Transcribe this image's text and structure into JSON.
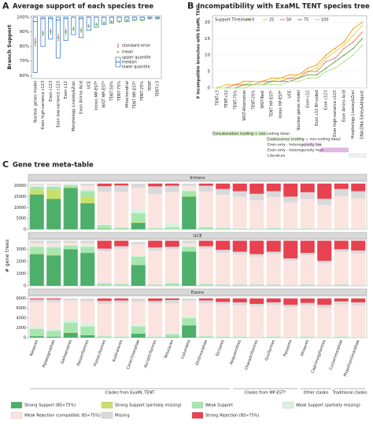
{
  "chart_data": [
    {
      "type": "box",
      "label": "A",
      "title": "Average support of each species tree",
      "y_label": "Branch Support",
      "categories": [
        "Nuclear genes model",
        "Exon high-variance c123",
        "Exon c123",
        "Exon low-variance c123",
        "Exon c12",
        "Morphology Livezey&Zusi",
        "Exon Amino Acid",
        "UCE",
        "Intron MP-EST*",
        "WGT MP-EST*",
        "TENT-50%",
        "TENT-75%",
        "Mitochondrial",
        "TENT MP-EST*",
        "TENT-25%",
        "TENT",
        "TENT-c3"
      ],
      "ylim": [
        58,
        101
      ],
      "yticks": [
        {
          "value": 60,
          "label": "60%"
        },
        {
          "value": 70,
          "label": "70%"
        },
        {
          "value": 80,
          "label": "80%"
        },
        {
          "value": 90,
          "label": "90%"
        },
        {
          "value": 100,
          "label": "100%"
        }
      ],
      "series": [
        {
          "name": "upper quantile",
          "color": "#3a7fd0",
          "values": [
            100,
            100,
            100,
            100,
            100,
            100,
            100,
            100,
            100,
            100,
            100,
            100,
            100,
            100,
            100,
            100,
            100
          ]
        },
        {
          "name": "median",
          "color": "#3a7fd0",
          "values": [
            97,
            99,
            99,
            98,
            99,
            100,
            99,
            100,
            100,
            100,
            100,
            100,
            100,
            100,
            100,
            100,
            100
          ]
        },
        {
          "name": "lower quantile",
          "color": "#3a7fd0",
          "values": [
            62,
            80,
            85,
            72,
            84,
            88,
            86,
            91,
            93,
            95,
            96,
            97,
            97,
            98,
            98,
            99,
            99
          ]
        },
        {
          "name": "mean",
          "color": "#7cc242",
          "values": [
            83,
            89,
            90,
            86,
            90,
            92,
            91,
            94,
            95,
            96,
            97,
            97,
            98,
            98,
            98,
            99,
            99
          ]
        },
        {
          "name": "standard error",
          "color": "#e03030",
          "values": [
            3,
            2,
            2,
            2.5,
            2,
            1.5,
            1.8,
            1.2,
            1,
            1,
            0.8,
            0.7,
            0.6,
            0.5,
            0.5,
            0.4,
            0.4
          ]
        }
      ]
    },
    {
      "type": "line",
      "label": "B",
      "title": "Incompatibility with ExaML TENT species tree",
      "y_label": "# Incompatible branches with ExaML TENT",
      "legend_title": "Support Threshold",
      "groups": [
        {
          "label": "Concatenation (coding + non-coding data)",
          "color": "#d4f0c4",
          "categories": [
            "TENT-c3",
            "TENT-c12",
            "TENT-75%",
            "WGT-Alternative",
            "TENT-25%",
            "WGT-Best"
          ]
        },
        {
          "label": "Coalescence (coding + non-coding data)",
          "color": "#e8f6e0",
          "categories": [
            "TENT MP-EST*",
            "Intron MP-EST*",
            "UCE",
            "Nuclear genes model"
          ]
        },
        {
          "label": "Exon-only - heterogeneity low",
          "color": "#f3e4f4",
          "categories": [
            "Exon c12",
            "Exon c12 RY-coded"
          ]
        },
        {
          "label": "Exon-only - heterogeneity high",
          "color": "#e0b8e4",
          "categories": [
            "Exon c123",
            "Exon high-variance c123",
            "Exon Amino Acid"
          ]
        },
        {
          "label": "Literature",
          "color": "#eeeeee",
          "categories": [
            "Morphology Livezey&Zusi",
            "DNA-DNA Sibley&Ahlquist"
          ]
        }
      ],
      "ylim": [
        0,
        22
      ],
      "yticks": [
        0,
        5,
        10,
        15,
        20
      ],
      "series": [
        {
          "name": "0",
          "color": "#f0a020",
          "values": [
            0,
            1,
            1,
            2,
            2,
            2,
            3,
            3,
            4,
            4,
            6,
            7,
            10,
            12,
            14,
            18,
            20
          ]
        },
        {
          "name": "25",
          "color": "#e6d24a",
          "values": [
            0,
            1,
            1,
            1,
            2,
            2,
            2,
            3,
            3,
            4,
            5,
            6,
            9,
            11,
            13,
            16,
            19
          ]
        },
        {
          "name": "50",
          "color": "#f08080",
          "values": [
            0,
            0,
            1,
            1,
            1,
            2,
            2,
            2,
            3,
            3,
            5,
            5,
            8,
            9,
            12,
            14,
            17
          ]
        },
        {
          "name": "75",
          "color": "#6ab04c",
          "values": [
            0,
            0,
            0,
            1,
            1,
            1,
            2,
            2,
            2,
            3,
            4,
            4,
            6,
            8,
            10,
            12,
            15
          ]
        },
        {
          "name": "100",
          "color": "#b8e08a",
          "values": [
            0,
            0,
            0,
            0,
            1,
            1,
            1,
            1,
            2,
            2,
            3,
            3,
            5,
            6,
            8,
            10,
            13
          ]
        }
      ]
    },
    {
      "type": "stacked_bar",
      "label": "C",
      "title": "Gene tree meta-table",
      "y_label": "# gene trees",
      "groups": [
        {
          "label": "Clades from ExaML TENT",
          "categories": [
            "Neoaves",
            "Palaeognathae",
            "Galloanseres",
            "Passeriformes",
            "Psittaciformes",
            "Australaves",
            "Coraciimorphae",
            "Accipitriformes",
            "Telluraves",
            "Columbea",
            "Otidimorphae",
            "Strisores"
          ]
        },
        {
          "label": "Clades from MP-EST*",
          "categories": [
            "Aequornithes",
            "Charadriiformes",
            "Gruiformes",
            "Passerea"
          ]
        },
        {
          "label": "Other clades",
          "categories": [
            "Afroaves",
            "Caprimulgiformes"
          ]
        },
        {
          "label": "Traditional clades",
          "categories": [
            "Cursorimorphae",
            "Phaethontimorphae"
          ]
        }
      ],
      "series": [
        {
          "name": "Strong Support (BS>75%)",
          "color": "#4daf6a"
        },
        {
          "name": "Strong Support (partially missing)",
          "color": "#c8e06a"
        },
        {
          "name": "Weak Support",
          "color": "#a8e6b0"
        },
        {
          "name": "Weak Support (partially missing)",
          "color": "#d8f2e0"
        },
        {
          "name": "Weak Rejection (compatible, BS<75%)",
          "color": "#fbe3e0"
        },
        {
          "name": "Missing",
          "color": "#d9d9d9"
        },
        {
          "name": "Strong Rejection (BS>75%)",
          "color": "#e8414f"
        }
      ],
      "panels": [
        {
          "title": "Introns",
          "ylim": [
            0,
            22000
          ],
          "yticks": [
            0,
            5000,
            10000,
            15000,
            20000
          ],
          "values": [
            [
              16000,
              14000,
              19000,
              12000,
              200,
              0,
              3000,
              0,
              0,
              15000,
              0,
              0,
              0,
              0,
              0,
              0,
              0,
              0,
              0,
              0
            ],
            [
              2000,
              4000,
              500,
              3000,
              100,
              0,
              500,
              0,
              0,
              500,
              0,
              0,
              0,
              0,
              0,
              0,
              0,
              0,
              0,
              0
            ],
            [
              1500,
              1500,
              800,
              2500,
              1500,
              800,
              4000,
              500,
              1000,
              2000,
              1000,
              600,
              300,
              200,
              500,
              200,
              300,
              100,
              200,
              100
            ],
            [
              500,
              500,
              200,
              1000,
              500,
              300,
              1500,
              200,
              2000,
              500,
              300,
              200,
              100,
              100,
              200,
              100,
              100,
              100,
              100,
              100
            ],
            [
              500,
              500,
              300,
              1500,
              15000,
              16000,
              10000,
              15500,
              14000,
              2000,
              16000,
              15000,
              14500,
              13000,
              14000,
              12000,
              13500,
              11000,
              15000,
              14000
            ],
            [
              500,
              500,
              200,
              1000,
              2500,
              3000,
              2000,
              3500,
              3000,
              1000,
              2700,
              2700,
              2600,
              3000,
              2800,
              2700,
              3100,
              2800,
              3200,
              3300
            ],
            [
              0,
              0,
              0,
              0,
              1200,
              900,
              0,
              1300,
              1000,
              0,
              1000,
              2500,
              3500,
              4700,
              3500,
              6000,
              4000,
              7000,
              2500,
              3500
            ]
          ]
        },
        {
          "title": "UCE",
          "ylim": [
            0,
            3800
          ],
          "yticks": [
            0,
            1000,
            2000,
            3000
          ],
          "values": [
            [
              2600,
              2500,
              3000,
              2700,
              0,
              0,
              1700,
              0,
              0,
              2800,
              0,
              0,
              0,
              0,
              0,
              0,
              0,
              0,
              0,
              0
            ],
            [
              100,
              50,
              0,
              0,
              0,
              0,
              0,
              0,
              0,
              0,
              0,
              0,
              0,
              0,
              0,
              0,
              0,
              0,
              0,
              0
            ],
            [
              500,
              600,
              300,
              500,
              200,
              150,
              700,
              100,
              200,
              400,
              150,
              100,
              100,
              100,
              100,
              50,
              100,
              50,
              100,
              50
            ],
            [
              100,
              100,
              50,
              100,
              50,
              0,
              100,
              0,
              100,
              50,
              0,
              0,
              0,
              0,
              0,
              0,
              0,
              0,
              0,
              0
            ],
            [
              200,
              250,
              150,
              200,
              2600,
              2900,
              900,
              2800,
              2700,
              250,
              2900,
              2600,
              2500,
              2300,
              2500,
              2000,
              2400,
              1800,
              2700,
              2600
            ],
            [
              200,
              200,
              200,
              200,
              200,
              200,
              200,
              250,
              200,
              200,
              200,
              250,
              200,
              200,
              200,
              200,
              200,
              200,
              200,
              250
            ],
            [
              0,
              0,
              0,
              0,
              650,
              450,
              0,
              550,
              500,
              0,
              450,
              750,
              900,
              1100,
              900,
              1450,
              1000,
              1650,
              700,
              800
            ]
          ]
        },
        {
          "title": "Exons",
          "ylim": [
            0,
            8500
          ],
          "yticks": [
            0,
            2000,
            4000,
            6000,
            8000
          ],
          "values": [
            [
              300,
              200,
              1000,
              500,
              0,
              0,
              800,
              0,
              100,
              2500,
              0,
              0,
              0,
              0,
              0,
              0,
              0,
              0,
              0,
              0
            ],
            [
              0,
              0,
              100,
              0,
              0,
              0,
              0,
              0,
              0,
              0,
              0,
              0,
              0,
              0,
              0,
              0,
              0,
              0,
              0,
              0
            ],
            [
              1500,
              1200,
              2000,
              1800,
              300,
              200,
              1500,
              200,
              600,
              1500,
              300,
              200,
              200,
              100,
              200,
              100,
              200,
              100,
              200,
              100
            ],
            [
              500,
              400,
              500,
              600,
              100,
              100,
              400,
              100,
              300,
              300,
              100,
              100,
              100,
              100,
              100,
              100,
              100,
              100,
              100,
              100
            ],
            [
              5000,
              5500,
              4000,
              4500,
              6500,
              6800,
              4700,
              6700,
              6000,
              3200,
              6600,
              6500,
              6300,
              6200,
              6400,
              6000,
              6300,
              5900,
              6500,
              6400
            ],
            [
              500,
              500,
              400,
              600,
              600,
              500,
              600,
              500,
              700,
              500,
              600,
              500,
              600,
              500,
              500,
              500,
              500,
              600,
              600,
              600
            ],
            [
              200,
              200,
              0,
              0,
              500,
              400,
              0,
              500,
              300,
              0,
              400,
              700,
              800,
              1100,
              800,
              1300,
              900,
              1300,
              600,
              800
            ]
          ]
        }
      ]
    }
  ]
}
